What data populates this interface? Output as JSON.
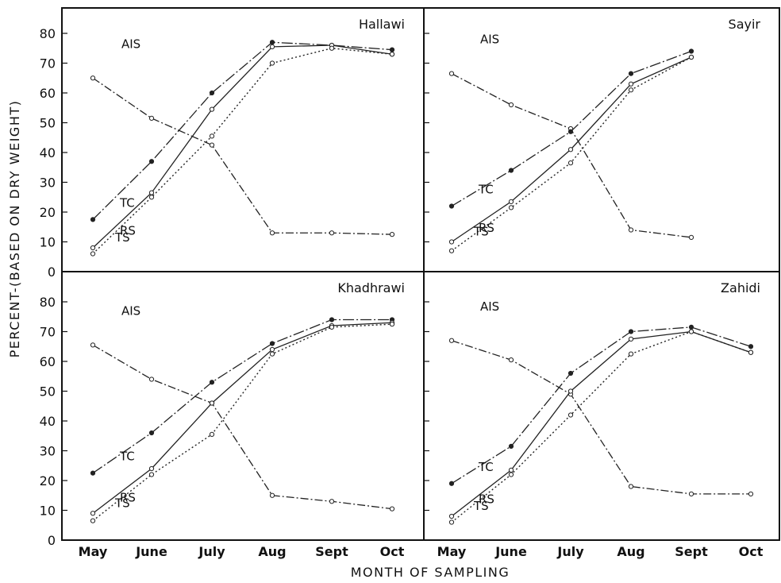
{
  "chart_data": {
    "type": "line",
    "ylabel": "PERCENT-(BASED ON DRY WEIGHT)",
    "xlabel": "MONTH OF SAMPLING",
    "categories": [
      "May",
      "June",
      "July",
      "Aug",
      "Sept",
      "Oct"
    ],
    "y_ticks": [
      "0",
      "10",
      "20",
      "30",
      "40",
      "50",
      "60",
      "70",
      "80"
    ],
    "ylim": [
      0,
      90
    ],
    "grid": false,
    "panels": [
      {
        "title": "Hallawi",
        "series": [
          {
            "name": "AIS",
            "x": [
              "May",
              "June",
              "July",
              "Aug",
              "Sept",
              "Oct"
            ],
            "values": [
              65,
              51.5,
              42.5,
              13,
              13,
              12.5
            ],
            "label_at": "May"
          },
          {
            "name": "TC",
            "x": [
              "May",
              "June",
              "July",
              "Aug",
              "Sept",
              "Oct"
            ],
            "values": [
              17.5,
              37,
              60,
              77,
              76,
              74.5
            ],
            "label_at": "May"
          },
          {
            "name": "TS",
            "x": [
              "May",
              "June",
              "July",
              "Aug",
              "Sept",
              "Oct"
            ],
            "values": [
              8,
              26.5,
              54.5,
              75.5,
              76,
              73
            ],
            "label_at": "May"
          },
          {
            "name": "RS",
            "x": [
              "May",
              "June",
              "July",
              "Aug",
              "Sept",
              "Oct"
            ],
            "values": [
              6,
              25,
              45.5,
              70,
              75,
              73
            ],
            "label_at": "May"
          }
        ]
      },
      {
        "title": "Sayir",
        "series": [
          {
            "name": "AIS",
            "x": [
              "May",
              "June",
              "July",
              "Aug",
              "Sept"
            ],
            "values": [
              66.5,
              56,
              48,
              14,
              11.5
            ],
            "label_at": "May"
          },
          {
            "name": "TC",
            "x": [
              "May",
              "June",
              "July",
              "Aug",
              "Sept"
            ],
            "values": [
              22,
              34,
              47,
              66.5,
              74
            ],
            "label_at": "May"
          },
          {
            "name": "TS",
            "x": [
              "May",
              "June",
              "July",
              "Aug",
              "Sept"
            ],
            "values": [
              10,
              23.5,
              41,
              63,
              72
            ],
            "label_at": "May"
          },
          {
            "name": "RS",
            "x": [
              "May",
              "June",
              "July",
              "Aug",
              "Sept"
            ],
            "values": [
              7,
              21.5,
              36.5,
              61,
              72
            ],
            "label_at": "May"
          }
        ]
      },
      {
        "title": "Khadhrawi",
        "series": [
          {
            "name": "AIS",
            "x": [
              "May",
              "June",
              "July",
              "Aug",
              "Sept",
              "Oct"
            ],
            "values": [
              65.5,
              54,
              46,
              15,
              13,
              10.5
            ],
            "label_at": "May"
          },
          {
            "name": "TC",
            "x": [
              "May",
              "June",
              "July",
              "Aug",
              "Sept",
              "Oct"
            ],
            "values": [
              22.5,
              36,
              53,
              66,
              74,
              74
            ],
            "label_at": "May"
          },
          {
            "name": "TS",
            "x": [
              "May",
              "June",
              "July",
              "Aug",
              "Sept",
              "Oct"
            ],
            "values": [
              9,
              24,
              46,
              64,
              72,
              73
            ],
            "label_at": "May"
          },
          {
            "name": "RS",
            "x": [
              "May",
              "June",
              "July",
              "Aug",
              "Sept",
              "Oct"
            ],
            "values": [
              6.5,
              22,
              35.5,
              62.5,
              71.5,
              72.5
            ],
            "label_at": "May"
          }
        ]
      },
      {
        "title": "Zahidi",
        "series": [
          {
            "name": "AIS",
            "x": [
              "May",
              "June",
              "July",
              "Aug",
              "Sept",
              "Oct"
            ],
            "values": [
              67,
              60.5,
              49,
              18,
              15.5,
              15.5
            ],
            "label_at": "May"
          },
          {
            "name": "TC",
            "x": [
              "May",
              "June",
              "July",
              "Aug",
              "Sept",
              "Oct"
            ],
            "values": [
              19,
              31.5,
              56,
              70,
              71.5,
              65
            ],
            "label_at": "May"
          },
          {
            "name": "TS",
            "x": [
              "May",
              "June",
              "July",
              "Aug",
              "Sept",
              "Oct"
            ],
            "values": [
              8,
              23.5,
              50,
              67.5,
              70,
              63
            ],
            "label_at": "May"
          },
          {
            "name": "RS",
            "x": [
              "May",
              "June",
              "July",
              "Aug",
              "Sept",
              "Oct"
            ],
            "values": [
              6,
              22,
              42,
              62.5,
              70,
              63
            ],
            "label_at": "May"
          }
        ]
      }
    ]
  }
}
